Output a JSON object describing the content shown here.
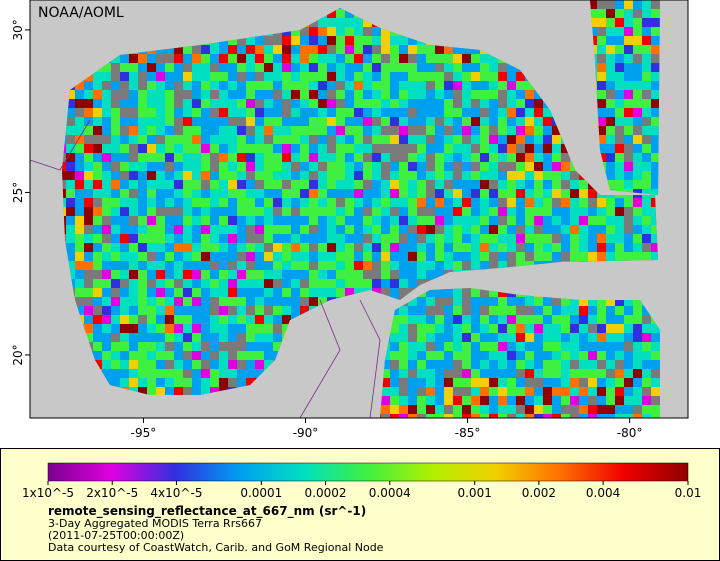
{
  "header": {
    "credit": "NOAA/AOML"
  },
  "map": {
    "lon_range": [
      -98.5,
      -78.2
    ],
    "lat_range": [
      18.06,
      30.92
    ],
    "lon_ticks": [
      {
        "value": -95,
        "label": "-95°"
      },
      {
        "value": -90,
        "label": "-90°"
      },
      {
        "value": -85,
        "label": "-85°"
      },
      {
        "value": -80,
        "label": "-80°"
      }
    ],
    "lat_ticks": [
      {
        "value": 30,
        "label": "30°"
      },
      {
        "value": 25,
        "label": "25°"
      },
      {
        "value": 20,
        "label": "20°"
      }
    ]
  },
  "colorbar": {
    "scale": "log",
    "range": [
      1e-05,
      0.01
    ],
    "colors": [
      "#7a0090",
      "#e000e0",
      "#3030e0",
      "#00a0f0",
      "#00e0c0",
      "#40f040",
      "#b0f000",
      "#f0d000",
      "#ff7000",
      "#f00000",
      "#900000"
    ],
    "ticks": [
      {
        "value": 1e-05,
        "label": "1x10^-5"
      },
      {
        "value": 2e-05,
        "label": "2x10^-5"
      },
      {
        "value": 4e-05,
        "label": "4x10^-5"
      },
      0.0001,
      0.0002,
      0.0004,
      0.001,
      0.002,
      0.004,
      0.01
    ]
  },
  "legend": {
    "variable": "remote_sensing_reflectance_at_667_nm (sr^-1)",
    "dataset": "3-Day Aggregated MODIS Terra Rrs667",
    "time": "(2011-07-25T00:00:00Z)",
    "credit": "Data courtesy of CoastWatch, Carib. and GoM Regional Node"
  }
}
